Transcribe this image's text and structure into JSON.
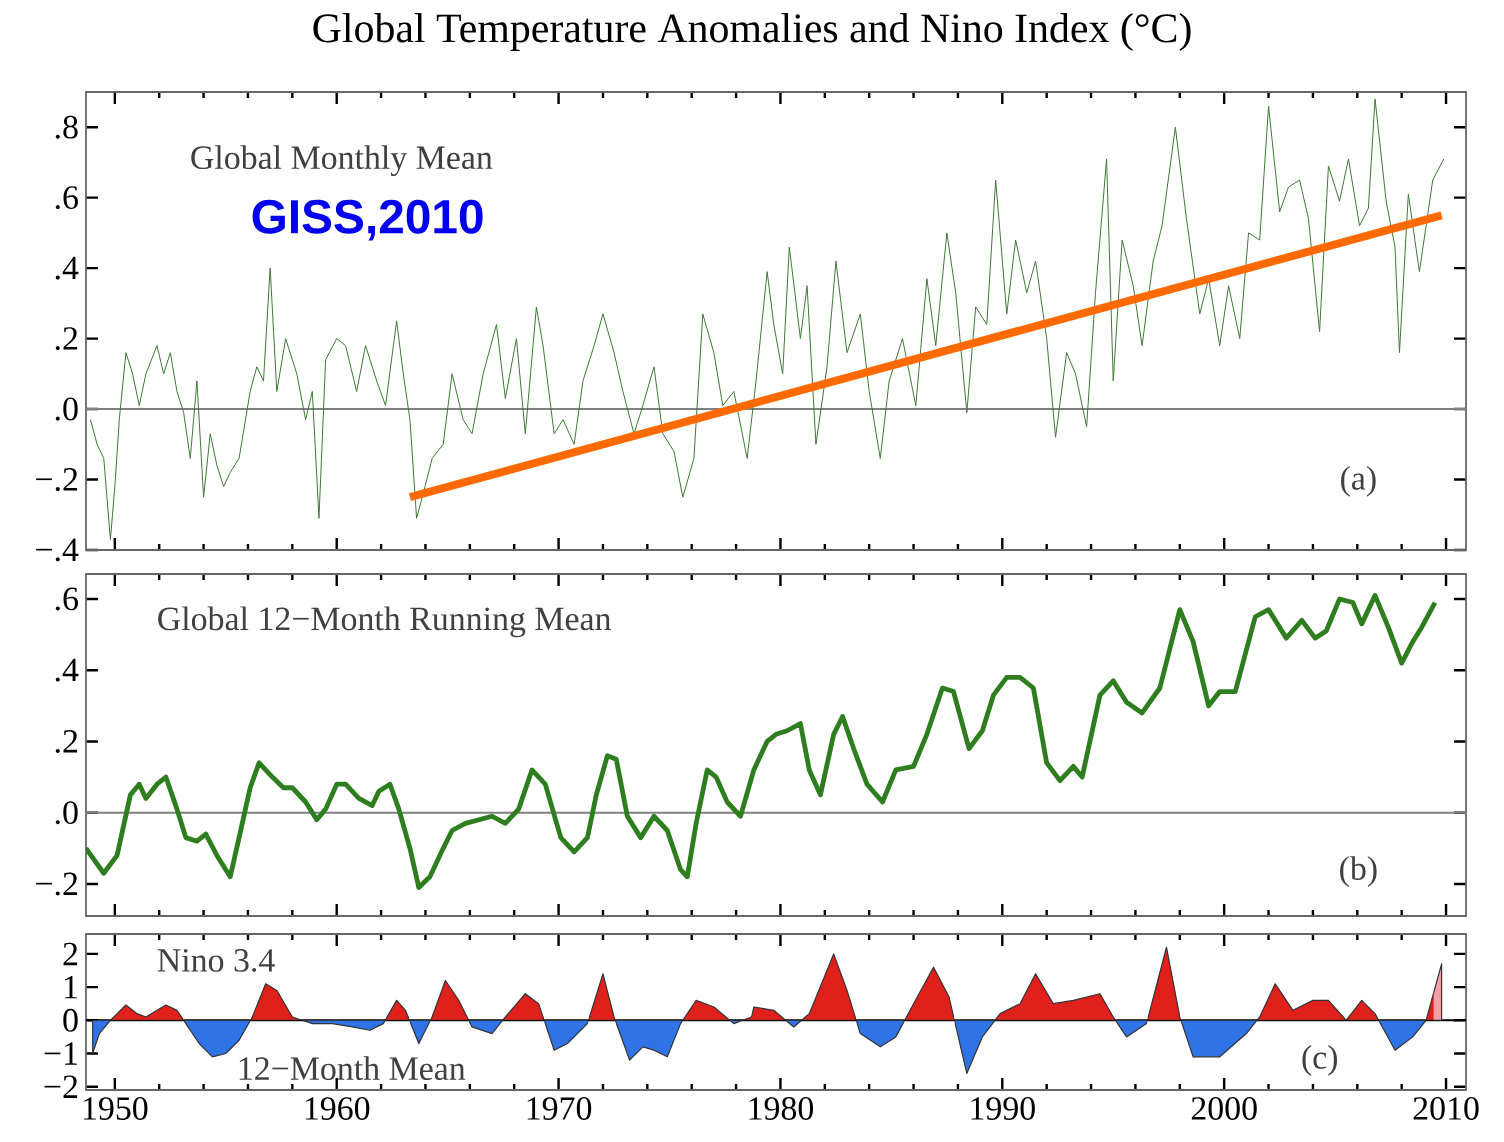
{
  "chart_data": [
    {
      "type": "line",
      "title": "Global Temperature Anomalies and Nino Index (°C)",
      "annotations": [
        "Global Monthly Mean",
        "GISS,2010",
        "(a)"
      ],
      "xlim": [
        1948.7,
        2010.9
      ],
      "xticks": [
        1950,
        1960,
        1970,
        1980,
        1990,
        2000,
        2010
      ],
      "ylim": [
        -0.4,
        0.9
      ],
      "yticks": [
        {
          "value": -0.4,
          "label": "−.4"
        },
        {
          "value": -0.2,
          "label": "−.2"
        },
        {
          "value": 0,
          "label": ".0"
        },
        {
          "value": 0.2,
          "label": ".2"
        },
        {
          "value": 0.4,
          "label": ".4"
        },
        {
          "value": 0.6,
          "label": ".6"
        },
        {
          "value": 0.8,
          "label": ".8"
        }
      ],
      "tick_labels": "y",
      "ref_lines": [
        {
          "axis": "y",
          "value": 0,
          "color": "#808080"
        }
      ],
      "series": [
        {
          "color": "#3d7a34",
          "x": [
            1948.9,
            1949.2,
            1949.5,
            1949.8,
            1950.0,
            1950.2,
            1950.5,
            1950.8,
            1951.1,
            1951.4,
            1951.9,
            1952.2,
            1952.5,
            1952.8,
            1953.1,
            1953.4,
            1953.7,
            1954.0,
            1954.3,
            1954.6,
            1954.9,
            1955.2,
            1955.6,
            1956.1,
            1956.4,
            1956.7,
            1957.0,
            1957.3,
            1957.7,
            1958.2,
            1958.6,
            1958.9,
            1959.2,
            1959.5,
            1960.0,
            1960.4,
            1960.9,
            1961.3,
            1961.8,
            1962.2,
            1962.7,
            1963.0,
            1963.3,
            1963.6,
            1963.9,
            1964.3,
            1964.8,
            1965.2,
            1965.7,
            1966.1,
            1966.6,
            1967.2,
            1967.6,
            1968.1,
            1968.5,
            1969.0,
            1969.3,
            1969.8,
            1970.2,
            1970.7,
            1971.1,
            1971.6,
            1972.0,
            1972.5,
            1972.9,
            1973.4,
            1973.8,
            1974.3,
            1974.7,
            1975.2,
            1975.6,
            1976.1,
            1976.5,
            1977.0,
            1977.4,
            1977.9,
            1978.5,
            1978.9,
            1979.4,
            1979.7,
            1980.1,
            1980.4,
            1980.9,
            1981.2,
            1981.6,
            1982.1,
            1982.5,
            1983.0,
            1983.6,
            1984.0,
            1984.5,
            1984.9,
            1985.5,
            1986.1,
            1986.6,
            1987.0,
            1987.5,
            1987.9,
            1988.4,
            1988.8,
            1989.3,
            1989.7,
            1990.2,
            1990.6,
            1991.1,
            1991.5,
            1992.0,
            1992.4,
            1992.9,
            1993.3,
            1993.8,
            1994.2,
            1994.7,
            1995.0,
            1995.4,
            1995.9,
            1996.3,
            1996.8,
            1997.2,
            1997.8,
            1998.3,
            1998.9,
            1999.3,
            1999.8,
            2000.2,
            2000.7,
            2001.1,
            2001.6,
            2002.0,
            2002.5,
            2002.9,
            2003.4,
            2003.8,
            2004.3,
            2004.7,
            2005.2,
            2005.6,
            2006.1,
            2006.5,
            2006.8,
            2007.3,
            2007.7,
            2007.9,
            2008.3,
            2008.8,
            2009.4,
            2009.9
          ],
          "values": [
            -0.03,
            -0.1,
            -0.14,
            -0.37,
            -0.22,
            -0.03,
            0.16,
            0.1,
            0.01,
            0.1,
            0.18,
            0.1,
            0.16,
            0.05,
            -0.01,
            -0.14,
            0.08,
            -0.25,
            -0.07,
            -0.16,
            -0.22,
            -0.18,
            -0.14,
            0.05,
            0.12,
            0.08,
            0.4,
            0.05,
            0.2,
            0.1,
            -0.03,
            0.05,
            -0.31,
            0.14,
            0.2,
            0.18,
            0.05,
            0.18,
            0.08,
            0.01,
            0.25,
            0.1,
            -0.03,
            -0.31,
            -0.24,
            -0.14,
            -0.1,
            0.1,
            -0.03,
            -0.07,
            0.1,
            0.24,
            0.03,
            0.2,
            -0.07,
            0.29,
            0.18,
            -0.07,
            -0.03,
            -0.1,
            0.08,
            0.18,
            0.27,
            0.16,
            0.05,
            -0.07,
            0.01,
            0.12,
            -0.07,
            -0.12,
            -0.25,
            -0.14,
            0.27,
            0.16,
            0.01,
            0.05,
            -0.14,
            0.08,
            0.39,
            0.24,
            0.1,
            0.46,
            0.2,
            0.35,
            -0.1,
            0.12,
            0.42,
            0.16,
            0.27,
            0.05,
            -0.14,
            0.08,
            0.2,
            0.01,
            0.37,
            0.18,
            0.5,
            0.33,
            -0.01,
            0.29,
            0.24,
            0.65,
            0.27,
            0.48,
            0.33,
            0.42,
            0.2,
            -0.08,
            0.16,
            0.1,
            -0.05,
            0.33,
            0.71,
            0.08,
            0.48,
            0.35,
            0.18,
            0.42,
            0.52,
            0.8,
            0.54,
            0.27,
            0.37,
            0.18,
            0.35,
            0.2,
            0.5,
            0.48,
            0.86,
            0.56,
            0.63,
            0.65,
            0.54,
            0.22,
            0.69,
            0.59,
            0.71,
            0.52,
            0.57,
            0.88,
            0.59,
            0.46,
            0.16,
            0.61,
            0.39,
            0.65,
            0.71
          ]
        },
        {
          "type": "line",
          "color": "#ff6a00",
          "x": [
            1963.3,
            2009.8
          ],
          "values": [
            -0.25,
            0.55
          ]
        }
      ]
    },
    {
      "type": "line",
      "annotations": [
        "Global 12−Month Running Mean",
        "(b)"
      ],
      "xlim": [
        1948.7,
        2010.9
      ],
      "xticks": [
        1950,
        1960,
        1970,
        1980,
        1990,
        2000,
        2010
      ],
      "ylim": [
        -0.29,
        0.67
      ],
      "yticks": [
        {
          "value": -0.2,
          "label": "−.2"
        },
        {
          "value": 0,
          "label": ".0"
        },
        {
          "value": 0.2,
          "label": ".2"
        },
        {
          "value": 0.4,
          "label": ".4"
        },
        {
          "value": 0.6,
          "label": ".6"
        }
      ],
      "tick_labels": "y",
      "ref_lines": [
        {
          "axis": "y",
          "value": 0,
          "color": "#808080"
        }
      ],
      "series": [
        {
          "color": "#2e7d1f",
          "x": [
            1948.7,
            1949.5,
            1950.1,
            1950.7,
            1951.1,
            1951.4,
            1951.9,
            1952.3,
            1952.8,
            1953.2,
            1953.7,
            1954.1,
            1954.6,
            1955.2,
            1955.6,
            1956.1,
            1956.5,
            1957.1,
            1957.6,
            1958.0,
            1958.6,
            1959.1,
            1959.5,
            1960.0,
            1960.4,
            1961.0,
            1961.6,
            1961.9,
            1962.4,
            1962.8,
            1963.3,
            1963.7,
            1964.2,
            1964.8,
            1965.2,
            1965.8,
            1966.4,
            1967.0,
            1967.6,
            1968.2,
            1968.8,
            1969.4,
            1970.1,
            1970.7,
            1971.3,
            1971.7,
            1972.2,
            1972.6,
            1973.1,
            1973.7,
            1974.3,
            1974.9,
            1975.5,
            1975.8,
            1976.2,
            1976.7,
            1977.1,
            1977.6,
            1978.2,
            1978.8,
            1979.4,
            1979.8,
            1980.3,
            1980.9,
            1981.3,
            1981.8,
            1982.4,
            1982.8,
            1983.3,
            1983.9,
            1984.6,
            1985.2,
            1986.0,
            1986.6,
            1987.3,
            1987.8,
            1988.5,
            1989.1,
            1989.6,
            1990.2,
            1990.8,
            1991.4,
            1992.0,
            1992.6,
            1993.2,
            1993.6,
            1994.4,
            1995.0,
            1995.6,
            1996.3,
            1997.1,
            1998.0,
            1998.6,
            1999.3,
            1999.8,
            2000.5,
            2001.4,
            2002.0,
            2002.8,
            2003.5,
            2004.1,
            2004.6,
            2005.2,
            2005.8,
            2006.2,
            2006.8,
            2007.4,
            2008.0,
            2008.5,
            2008.9,
            2009.5
          ],
          "values": [
            -0.1,
            -0.17,
            -0.12,
            0.05,
            0.08,
            0.04,
            0.08,
            0.1,
            0.01,
            -0.07,
            -0.08,
            -0.06,
            -0.12,
            -0.18,
            -0.07,
            0.07,
            0.14,
            0.1,
            0.07,
            0.07,
            0.03,
            -0.02,
            0.01,
            0.08,
            0.08,
            0.04,
            0.02,
            0.06,
            0.08,
            0.01,
            -0.1,
            -0.21,
            -0.18,
            -0.1,
            -0.05,
            -0.03,
            -0.02,
            -0.01,
            -0.03,
            0.01,
            0.12,
            0.08,
            -0.07,
            -0.11,
            -0.07,
            0.05,
            0.16,
            0.15,
            -0.01,
            -0.07,
            -0.01,
            -0.05,
            -0.16,
            -0.18,
            -0.03,
            0.12,
            0.1,
            0.03,
            -0.01,
            0.12,
            0.2,
            0.22,
            0.23,
            0.25,
            0.12,
            0.05,
            0.22,
            0.27,
            0.18,
            0.08,
            0.03,
            0.12,
            0.13,
            0.22,
            0.35,
            0.34,
            0.18,
            0.23,
            0.33,
            0.38,
            0.38,
            0.35,
            0.14,
            0.09,
            0.13,
            0.1,
            0.33,
            0.37,
            0.31,
            0.28,
            0.35,
            0.57,
            0.48,
            0.3,
            0.34,
            0.34,
            0.55,
            0.57,
            0.49,
            0.54,
            0.49,
            0.51,
            0.6,
            0.59,
            0.53,
            0.61,
            0.52,
            0.42,
            0.48,
            0.52,
            0.59
          ]
        }
      ]
    },
    {
      "type": "area",
      "annotations": [
        "Nino 3.4",
        "12−Month Mean",
        "(c)"
      ],
      "xlim": [
        1948.7,
        2010.9
      ],
      "xticks": [
        1950,
        1960,
        1970,
        1980,
        1990,
        2000,
        2010
      ],
      "ylim": [
        -2.1,
        2.6
      ],
      "yticks": [
        {
          "value": -2,
          "label": "−2"
        },
        {
          "value": -1,
          "label": "−1"
        },
        0,
        1,
        2
      ],
      "ref_lines": [
        {
          "axis": "y",
          "value": 0,
          "color": "#000000"
        }
      ],
      "series": [
        {
          "colors": [
            "#2f74e6",
            "#2f74e6",
            "#e0201b",
            "#e0201b",
            "#e0201b",
            "#e0201b",
            "#e0201b",
            "#e0201b",
            "#2f74e6",
            "#2f74e6",
            "#2f74e6",
            "#2f74e6",
            "#2f74e6",
            "#e0201b",
            "#e0201b",
            "#e0201b",
            "#e0201b",
            "#2f74e6",
            "#2f74e6",
            "#2f74e6",
            "#2f74e6",
            "#2f74e6",
            "#e0201b",
            "#e0201b",
            "#2f74e6",
            "#e0201b",
            "#e0201b",
            "#e0201b",
            "#2f74e6",
            "#2f74e6",
            "#e0201b",
            "#e0201b",
            "#e0201b",
            "#2f74e6",
            "#2f74e6",
            "#2f74e6",
            "#e0201b",
            "#e0201b",
            "#2f74e6",
            "#2f74e6",
            "#2f74e6",
            "#2f74e6",
            "#2f74e6",
            "#e0201b",
            "#e0201b",
            "#2f74e6",
            "#e0201b",
            "#e0201b",
            "#e0201b",
            "#2f74e6",
            "#e0201b",
            "#e0201b",
            "#e0201b",
            "#2f74e6",
            "#2f74e6",
            "#2f74e6",
            "#e0201b",
            "#e0201b",
            "#e0201b",
            "#2f74e6",
            "#2f74e6",
            "#e0201b",
            "#e0201b",
            "#e0201b",
            "#e0201b",
            "#e0201b",
            "#e0201b",
            "#e0201b",
            "#2f74e6",
            "#2f74e6",
            "#e0201b",
            "#e0201b",
            "#2f74e6",
            "#2f74e6",
            "#2f74e6",
            "#e0201b",
            "#e0201b",
            "#e0201b",
            "#e0201b",
            "#e0201b",
            "#e0201b",
            "#e0201b",
            "#e0201b",
            "#2f74e6",
            "#2f74e6",
            "#e0201b",
            "#f4a0a8"
          ],
          "x": [
            1949.0,
            1949.3,
            1949.8,
            1950.5,
            1951.0,
            1951.4,
            1952.3,
            1952.8,
            1953.2,
            1953.8,
            1954.4,
            1955.0,
            1955.6,
            1956.2,
            1956.8,
            1957.3,
            1958.0,
            1958.9,
            1959.8,
            1960.7,
            1961.5,
            1962.1,
            1962.7,
            1963.1,
            1963.7,
            1964.3,
            1964.9,
            1965.5,
            1966.1,
            1967.0,
            1967.6,
            1968.5,
            1969.1,
            1969.8,
            1970.4,
            1971.3,
            1972.0,
            1972.5,
            1973.2,
            1973.8,
            1974.3,
            1974.9,
            1975.5,
            1976.2,
            1977.0,
            1977.9,
            1978.7,
            1978.8,
            1979.7,
            1980.6,
            1981.3,
            1982.4,
            1983.0,
            1983.6,
            1984.5,
            1985.2,
            1986.0,
            1986.9,
            1987.6,
            1988.4,
            1989.1,
            1989.9,
            1990.8,
            1991.5,
            1992.3,
            1993.2,
            1994.4,
            1995.0,
            1995.6,
            1996.5,
            1997.4,
            1998.0,
            1998.6,
            1999.8,
            2001.0,
            2001.6,
            2002.3,
            2003.1,
            2004.0,
            2004.7,
            2005.5,
            2006.2,
            2006.8,
            2007.7,
            2008.5,
            2009.1,
            2009.8
          ],
          "values": [
            -1.0,
            -0.4,
            0,
            0.46,
            0.2,
            0.1,
            0.46,
            0.3,
            -0.1,
            -0.7,
            -1.1,
            -1.0,
            -0.6,
            0.1,
            1.1,
            0.9,
            0.1,
            -0.1,
            -0.1,
            -0.2,
            -0.3,
            -0.1,
            0.6,
            0.3,
            -0.7,
            0.1,
            1.2,
            0.6,
            -0.2,
            -0.4,
            0.1,
            0.8,
            0.5,
            -0.9,
            -0.7,
            -0.1,
            1.4,
            0.1,
            -1.2,
            -0.8,
            -0.9,
            -1.1,
            -0.1,
            0.6,
            0.4,
            -0.1,
            0.1,
            0.4,
            0.3,
            -0.2,
            0.2,
            2.0,
            0.9,
            -0.4,
            -0.8,
            -0.5,
            0.5,
            1.6,
            0.7,
            -1.6,
            -0.5,
            0.2,
            0.5,
            1.4,
            0.5,
            0.6,
            0.8,
            0.1,
            -0.5,
            -0.1,
            2.2,
            0.1,
            -1.1,
            -1.1,
            -0.4,
            0.1,
            1.1,
            0.3,
            0.6,
            0.6,
            0.0,
            0.6,
            0.2,
            -0.9,
            -0.5,
            0,
            1.7
          ]
        }
      ]
    }
  ]
}
